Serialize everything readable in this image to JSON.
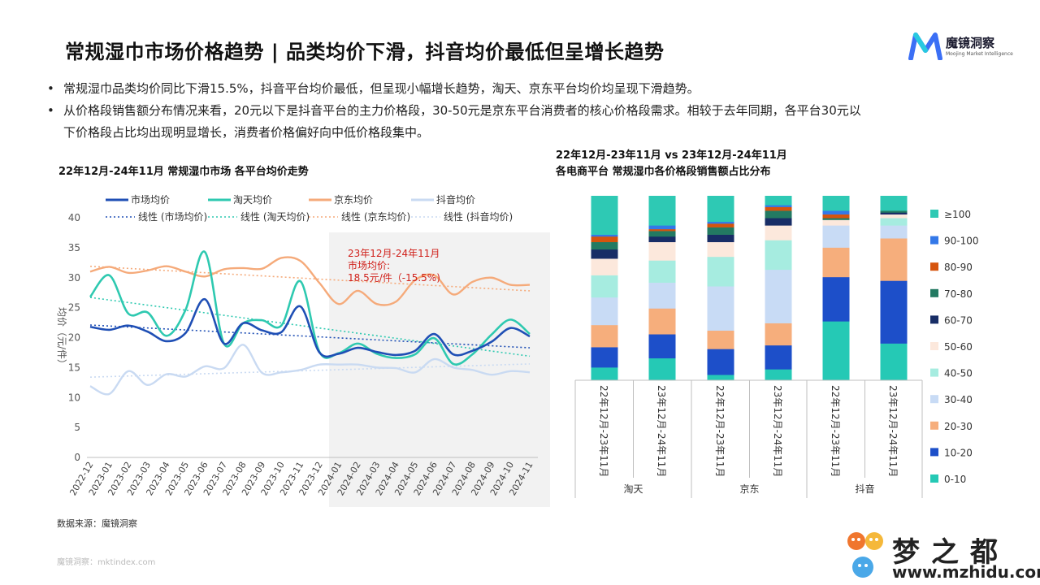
{
  "title": "常规湿巾市场价格趋势 | 品类均价下滑，抖音均价最低但呈增长趋势",
  "logo": {
    "name": "魔镜洞察",
    "sub": "Moojing Market Intelligence",
    "color": "#3b6ff5"
  },
  "bullets": [
    [
      "常规湿巾品类均价同比下滑15.5%，抖音平台均价最低，但呈现小幅增长趋势，淘天、京东平台均价均呈现下滑趋势。"
    ],
    [
      "从价格段销售额分布情况来看，20元以下是抖音平台的主力价格段，30-50元是京东平台消费者的核心价格段需求。相较于去年同期，各平台30元以",
      "下价格段占比均出现明显增长，消费者价格偏好向中低价格段集中。"
    ]
  ],
  "left_title": "22年12月-24年11月 常规湿巾市场 各平台均价走势",
  "right_title_1": "22年12月-23年11月 vs 23年12月-24年11月",
  "right_title_2": "各电商平台 常规湿巾各价格段销售额占比分布",
  "source": "数据来源：魔镜洞察",
  "footer": "魔镜洞察：mktindex.com",
  "watermark": {
    "cn": "梦之都",
    "url": "www.mzhidu.com"
  },
  "chart_data": [
    {
      "type": "line",
      "ylabel": "均价（元/件）",
      "ylim": [
        0,
        40
      ],
      "yticks": [
        0,
        5,
        10,
        15,
        20,
        25,
        30,
        35,
        40
      ],
      "categories": [
        "2022-12",
        "2023-01",
        "2023-02",
        "2023-03",
        "2023-04",
        "2023-05",
        "2023-06",
        "2023-07",
        "2023-08",
        "2023-09",
        "2023-10",
        "2023-11",
        "2023-12",
        "2024-01",
        "2024-02",
        "2024-03",
        "2024-04",
        "2024-05",
        "2024-06",
        "2024-07",
        "2024-08",
        "2024-09",
        "2024-10",
        "2024-11"
      ],
      "highlight_start": "2024-01",
      "annotation": [
        "23年12月-24年11月",
        "市场均价:",
        "18.5元/件（-15.5%)"
      ],
      "annotation_color": "#d0201a",
      "series": [
        {
          "name": "市场均价",
          "color": "#1f4fb5",
          "width": 2.6,
          "values": [
            21.8,
            21.3,
            22.0,
            21.0,
            19.4,
            20.8,
            26.4,
            19.0,
            22.4,
            21.2,
            20.9,
            25.2,
            17.5,
            17.3,
            18.3,
            17.6,
            17.1,
            17.8,
            20.6,
            17.2,
            17.8,
            19.3,
            21.6,
            20.2
          ]
        },
        {
          "name": "淘天均价",
          "color": "#2ec9b0",
          "width": 2.6,
          "values": [
            26.8,
            30.4,
            24.0,
            24.2,
            20.3,
            24.7,
            34.3,
            19.0,
            22.4,
            22.9,
            22.0,
            29.4,
            17.6,
            17.4,
            19.0,
            17.3,
            16.6,
            17.2,
            19.9,
            15.6,
            17.2,
            20.5,
            23.0,
            20.6
          ]
        },
        {
          "name": "京东均价",
          "color": "#f5aa7a",
          "width": 2.4,
          "values": [
            31.0,
            31.8,
            30.8,
            31.2,
            31.9,
            31.0,
            30.2,
            31.4,
            31.6,
            31.5,
            33.3,
            32.8,
            29.1,
            25.6,
            27.8,
            25.6,
            26.0,
            29.6,
            30.4,
            27.2,
            29.3,
            30.0,
            28.8,
            28.8
          ]
        },
        {
          "name": "抖音均价",
          "color": "#c9daf2",
          "width": 2.4,
          "values": [
            11.9,
            10.6,
            14.4,
            12.1,
            13.9,
            13.5,
            15.2,
            14.9,
            18.8,
            14.1,
            14.2,
            14.6,
            15.5,
            15.5,
            15.5,
            15.0,
            14.9,
            14.2,
            16.4,
            15.0,
            14.6,
            13.8,
            14.4,
            14.2
          ]
        }
      ],
      "trendlines": [
        {
          "name": "线性 (市场均价)",
          "color": "#1f4fb5",
          "from": 22.1,
          "to": 18.3
        },
        {
          "name": "线性 (淘天均价)",
          "color": "#2ec9b0",
          "from": 26.7,
          "to": 16.9
        },
        {
          "name": "线性 (京东均价)",
          "color": "#f5aa7a",
          "from": 31.9,
          "to": 27.8
        },
        {
          "name": "线性 (抖音均价)",
          "color": "#c9daf2",
          "from": 13.4,
          "to": 15.6
        }
      ]
    },
    {
      "type": "bar",
      "stacked": true,
      "normalized": true,
      "categories": [
        "22年12月-23年11月",
        "23年12月-24年11月",
        "22年12月-23年11月",
        "23年12月-24年11月",
        "22年12月-23年11月",
        "23年12月-24年11月"
      ],
      "groups": [
        {
          "name": "淘天",
          "span": 2
        },
        {
          "name": "京东",
          "span": 2
        },
        {
          "name": "抖音",
          "span": 2
        }
      ],
      "series": [
        {
          "name": "0-10",
          "color": "#25c9b5",
          "values": [
            0.07,
            0.12,
            0.03,
            0.06,
            0.32,
            0.2
          ]
        },
        {
          "name": "10-20",
          "color": "#1d4fc9",
          "values": [
            0.11,
            0.13,
            0.14,
            0.13,
            0.24,
            0.34
          ]
        },
        {
          "name": "20-30",
          "color": "#f6ae7c",
          "values": [
            0.12,
            0.14,
            0.1,
            0.12,
            0.16,
            0.23
          ]
        },
        {
          "name": "30-40",
          "color": "#c8dbf5",
          "values": [
            0.15,
            0.14,
            0.24,
            0.29,
            0.12,
            0.07
          ]
        },
        {
          "name": "40-50",
          "color": "#a6ece0",
          "values": [
            0.12,
            0.12,
            0.16,
            0.16,
            0.0,
            0.04
          ]
        },
        {
          "name": "50-60",
          "color": "#fce8dc",
          "values": [
            0.09,
            0.1,
            0.08,
            0.08,
            0.03,
            0.02
          ]
        },
        {
          "name": "60-70",
          "color": "#182d66",
          "values": [
            0.05,
            0.03,
            0.04,
            0.04,
            0.0,
            0.01
          ]
        },
        {
          "name": "70-80",
          "color": "#237a62",
          "values": [
            0.04,
            0.03,
            0.04,
            0.04,
            0.01,
            0.01
          ]
        },
        {
          "name": "80-90",
          "color": "#d6540d",
          "values": [
            0.03,
            0.01,
            0.02,
            0.02,
            0.02,
            0.0
          ]
        },
        {
          "name": "90-100",
          "color": "#3378e8",
          "values": [
            0.01,
            0.02,
            0.01,
            0.01,
            0.02,
            0.0
          ]
        },
        {
          "name": "≥100",
          "color": "#2ec9b4",
          "values": [
            0.21,
            0.16,
            0.14,
            0.05,
            0.08,
            0.08
          ]
        }
      ]
    }
  ]
}
